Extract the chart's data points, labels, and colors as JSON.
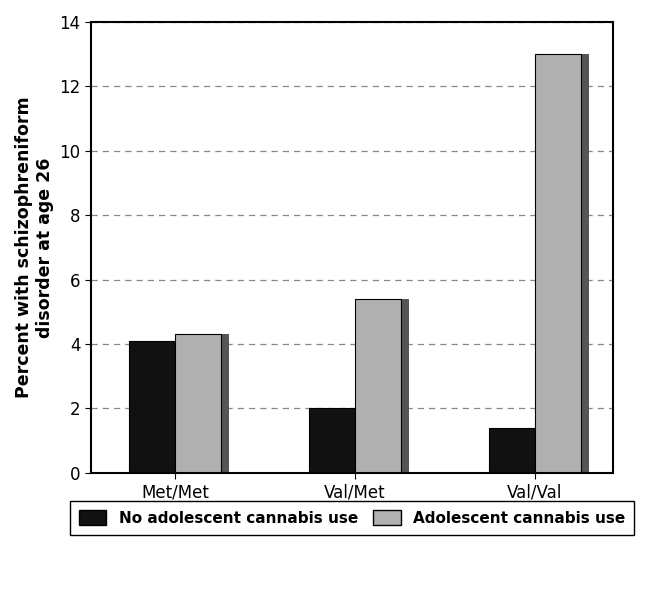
{
  "categories": [
    "Met/Met",
    "Val/Met",
    "Val/Val"
  ],
  "no_cannabis": [
    4.1,
    2.0,
    1.4
  ],
  "adolescent_cannabis": [
    4.3,
    5.4,
    13.0
  ],
  "bar_color_no": "#111111",
  "bar_color_yes": "#b0b0b0",
  "bar_edgecolor": "#000000",
  "ylabel": "Percent with schizophreniform\ndisorder at age 26",
  "ylim": [
    0,
    14
  ],
  "yticks": [
    0,
    2,
    4,
    6,
    8,
    10,
    12,
    14
  ],
  "legend_no": "No adolescent cannabis use",
  "legend_yes": "Adolescent cannabis use",
  "bar_width": 0.38,
  "group_positions": [
    1.0,
    2.5,
    4.0
  ],
  "background_color": "#ffffff",
  "grid_color": "#888888",
  "ylabel_fontsize": 12.5,
  "tick_fontsize": 12,
  "legend_fontsize": 11
}
